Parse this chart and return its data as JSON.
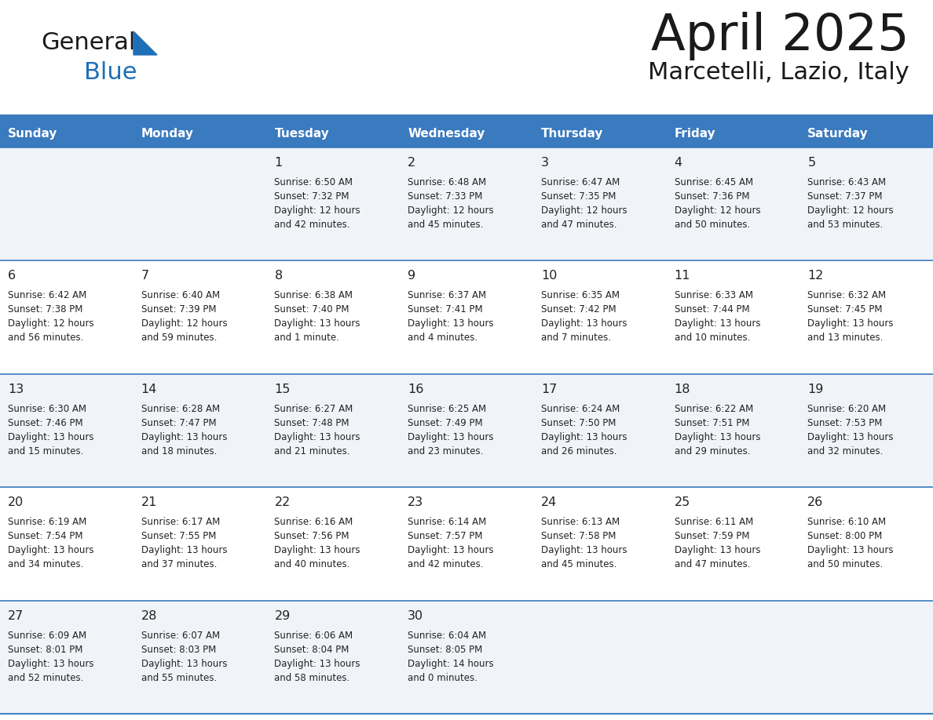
{
  "title": "April 2025",
  "subtitle": "Marcetelli, Lazio, Italy",
  "header_bg": "#3a7abf",
  "header_text": "#ffffff",
  "row_bg_even": "#f0f4f8",
  "row_bg_odd": "#ffffff",
  "border_color": "#3a7abf",
  "day_names": [
    "Sunday",
    "Monday",
    "Tuesday",
    "Wednesday",
    "Thursday",
    "Friday",
    "Saturday"
  ],
  "title_color": "#1a1a1a",
  "subtitle_color": "#1a1a1a",
  "cell_text_color": "#222222",
  "day_num_color": "#222222",
  "fig_width": 11.88,
  "fig_height": 9.18,
  "dpi": 100,
  "weeks": [
    [
      {
        "day": "",
        "sunrise": "",
        "sunset": "",
        "daylight": ""
      },
      {
        "day": "",
        "sunrise": "",
        "sunset": "",
        "daylight": ""
      },
      {
        "day": "1",
        "sunrise": "Sunrise: 6:50 AM",
        "sunset": "Sunset: 7:32 PM",
        "daylight": "Daylight: 12 hours\nand 42 minutes."
      },
      {
        "day": "2",
        "sunrise": "Sunrise: 6:48 AM",
        "sunset": "Sunset: 7:33 PM",
        "daylight": "Daylight: 12 hours\nand 45 minutes."
      },
      {
        "day": "3",
        "sunrise": "Sunrise: 6:47 AM",
        "sunset": "Sunset: 7:35 PM",
        "daylight": "Daylight: 12 hours\nand 47 minutes."
      },
      {
        "day": "4",
        "sunrise": "Sunrise: 6:45 AM",
        "sunset": "Sunset: 7:36 PM",
        "daylight": "Daylight: 12 hours\nand 50 minutes."
      },
      {
        "day": "5",
        "sunrise": "Sunrise: 6:43 AM",
        "sunset": "Sunset: 7:37 PM",
        "daylight": "Daylight: 12 hours\nand 53 minutes."
      }
    ],
    [
      {
        "day": "6",
        "sunrise": "Sunrise: 6:42 AM",
        "sunset": "Sunset: 7:38 PM",
        "daylight": "Daylight: 12 hours\nand 56 minutes."
      },
      {
        "day": "7",
        "sunrise": "Sunrise: 6:40 AM",
        "sunset": "Sunset: 7:39 PM",
        "daylight": "Daylight: 12 hours\nand 59 minutes."
      },
      {
        "day": "8",
        "sunrise": "Sunrise: 6:38 AM",
        "sunset": "Sunset: 7:40 PM",
        "daylight": "Daylight: 13 hours\nand 1 minute."
      },
      {
        "day": "9",
        "sunrise": "Sunrise: 6:37 AM",
        "sunset": "Sunset: 7:41 PM",
        "daylight": "Daylight: 13 hours\nand 4 minutes."
      },
      {
        "day": "10",
        "sunrise": "Sunrise: 6:35 AM",
        "sunset": "Sunset: 7:42 PM",
        "daylight": "Daylight: 13 hours\nand 7 minutes."
      },
      {
        "day": "11",
        "sunrise": "Sunrise: 6:33 AM",
        "sunset": "Sunset: 7:44 PM",
        "daylight": "Daylight: 13 hours\nand 10 minutes."
      },
      {
        "day": "12",
        "sunrise": "Sunrise: 6:32 AM",
        "sunset": "Sunset: 7:45 PM",
        "daylight": "Daylight: 13 hours\nand 13 minutes."
      }
    ],
    [
      {
        "day": "13",
        "sunrise": "Sunrise: 6:30 AM",
        "sunset": "Sunset: 7:46 PM",
        "daylight": "Daylight: 13 hours\nand 15 minutes."
      },
      {
        "day": "14",
        "sunrise": "Sunrise: 6:28 AM",
        "sunset": "Sunset: 7:47 PM",
        "daylight": "Daylight: 13 hours\nand 18 minutes."
      },
      {
        "day": "15",
        "sunrise": "Sunrise: 6:27 AM",
        "sunset": "Sunset: 7:48 PM",
        "daylight": "Daylight: 13 hours\nand 21 minutes."
      },
      {
        "day": "16",
        "sunrise": "Sunrise: 6:25 AM",
        "sunset": "Sunset: 7:49 PM",
        "daylight": "Daylight: 13 hours\nand 23 minutes."
      },
      {
        "day": "17",
        "sunrise": "Sunrise: 6:24 AM",
        "sunset": "Sunset: 7:50 PM",
        "daylight": "Daylight: 13 hours\nand 26 minutes."
      },
      {
        "day": "18",
        "sunrise": "Sunrise: 6:22 AM",
        "sunset": "Sunset: 7:51 PM",
        "daylight": "Daylight: 13 hours\nand 29 minutes."
      },
      {
        "day": "19",
        "sunrise": "Sunrise: 6:20 AM",
        "sunset": "Sunset: 7:53 PM",
        "daylight": "Daylight: 13 hours\nand 32 minutes."
      }
    ],
    [
      {
        "day": "20",
        "sunrise": "Sunrise: 6:19 AM",
        "sunset": "Sunset: 7:54 PM",
        "daylight": "Daylight: 13 hours\nand 34 minutes."
      },
      {
        "day": "21",
        "sunrise": "Sunrise: 6:17 AM",
        "sunset": "Sunset: 7:55 PM",
        "daylight": "Daylight: 13 hours\nand 37 minutes."
      },
      {
        "day": "22",
        "sunrise": "Sunrise: 6:16 AM",
        "sunset": "Sunset: 7:56 PM",
        "daylight": "Daylight: 13 hours\nand 40 minutes."
      },
      {
        "day": "23",
        "sunrise": "Sunrise: 6:14 AM",
        "sunset": "Sunset: 7:57 PM",
        "daylight": "Daylight: 13 hours\nand 42 minutes."
      },
      {
        "day": "24",
        "sunrise": "Sunrise: 6:13 AM",
        "sunset": "Sunset: 7:58 PM",
        "daylight": "Daylight: 13 hours\nand 45 minutes."
      },
      {
        "day": "25",
        "sunrise": "Sunrise: 6:11 AM",
        "sunset": "Sunset: 7:59 PM",
        "daylight": "Daylight: 13 hours\nand 47 minutes."
      },
      {
        "day": "26",
        "sunrise": "Sunrise: 6:10 AM",
        "sunset": "Sunset: 8:00 PM",
        "daylight": "Daylight: 13 hours\nand 50 minutes."
      }
    ],
    [
      {
        "day": "27",
        "sunrise": "Sunrise: 6:09 AM",
        "sunset": "Sunset: 8:01 PM",
        "daylight": "Daylight: 13 hours\nand 52 minutes."
      },
      {
        "day": "28",
        "sunrise": "Sunrise: 6:07 AM",
        "sunset": "Sunset: 8:03 PM",
        "daylight": "Daylight: 13 hours\nand 55 minutes."
      },
      {
        "day": "29",
        "sunrise": "Sunrise: 6:06 AM",
        "sunset": "Sunset: 8:04 PM",
        "daylight": "Daylight: 13 hours\nand 58 minutes."
      },
      {
        "day": "30",
        "sunrise": "Sunrise: 6:04 AM",
        "sunset": "Sunset: 8:05 PM",
        "daylight": "Daylight: 14 hours\nand 0 minutes."
      },
      {
        "day": "",
        "sunrise": "",
        "sunset": "",
        "daylight": ""
      },
      {
        "day": "",
        "sunrise": "",
        "sunset": "",
        "daylight": ""
      },
      {
        "day": "",
        "sunrise": "",
        "sunset": "",
        "daylight": ""
      }
    ]
  ]
}
